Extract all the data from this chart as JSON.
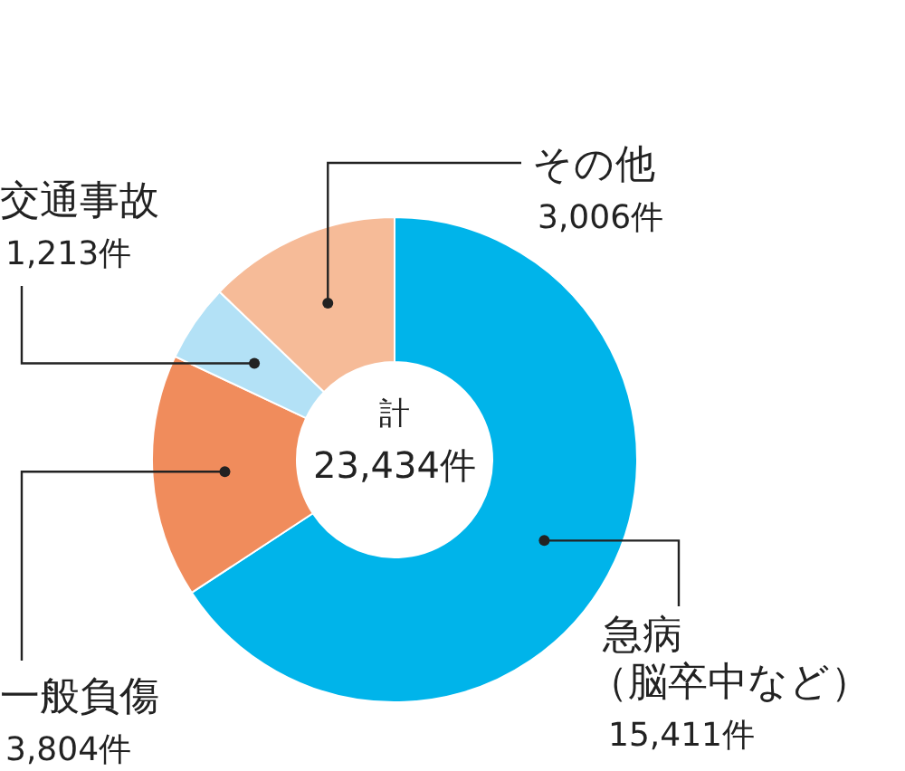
{
  "chart_data": {
    "type": "donut",
    "categories": [
      "急病（脳卒中など）",
      "一般負傷",
      "交通事故",
      "その他"
    ],
    "values": [
      15411,
      3804,
      1213,
      3006
    ],
    "value_labels": [
      "15,411件",
      "3,804件",
      "1,213件",
      "3,006件"
    ],
    "colors": [
      "#00b4ea",
      "#f08c5c",
      "#b3e1f6",
      "#f6bb98"
    ],
    "annotations": [
      "計",
      "23,434件"
    ]
  }
}
